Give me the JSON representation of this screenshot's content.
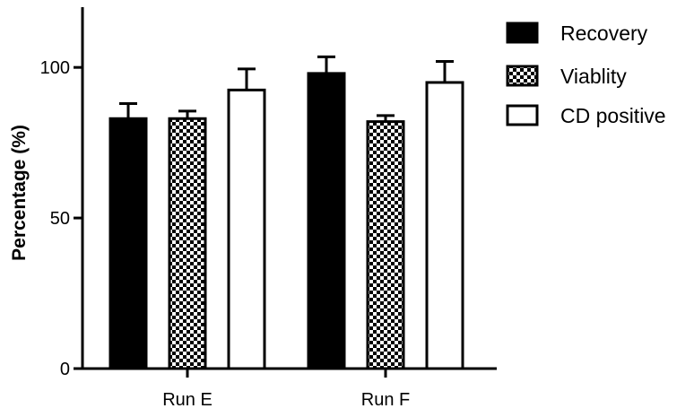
{
  "chart_data": {
    "type": "bar",
    "title": "",
    "xlabel": "",
    "ylabel": "Percentage (%)",
    "ylim": [
      0,
      120
    ],
    "yticks": [
      0,
      50,
      100
    ],
    "yticks_labels": [
      "0",
      "50",
      "100"
    ],
    "grid": false,
    "legend_position": "top-right",
    "categories": [
      "Run E",
      "Run F"
    ],
    "series": [
      {
        "name": "Recovery",
        "fill": "solid",
        "color": "#000000",
        "values": [
          83,
          98
        ],
        "errors": [
          5,
          5.5
        ]
      },
      {
        "name": "Viablity",
        "fill": "checker",
        "color": "#000000",
        "values": [
          83,
          82
        ],
        "errors": [
          2.5,
          2
        ]
      },
      {
        "name": "CD positive",
        "fill": "open",
        "color": "#ffffff",
        "values": [
          92.5,
          95
        ],
        "errors": [
          7,
          7
        ]
      }
    ]
  }
}
